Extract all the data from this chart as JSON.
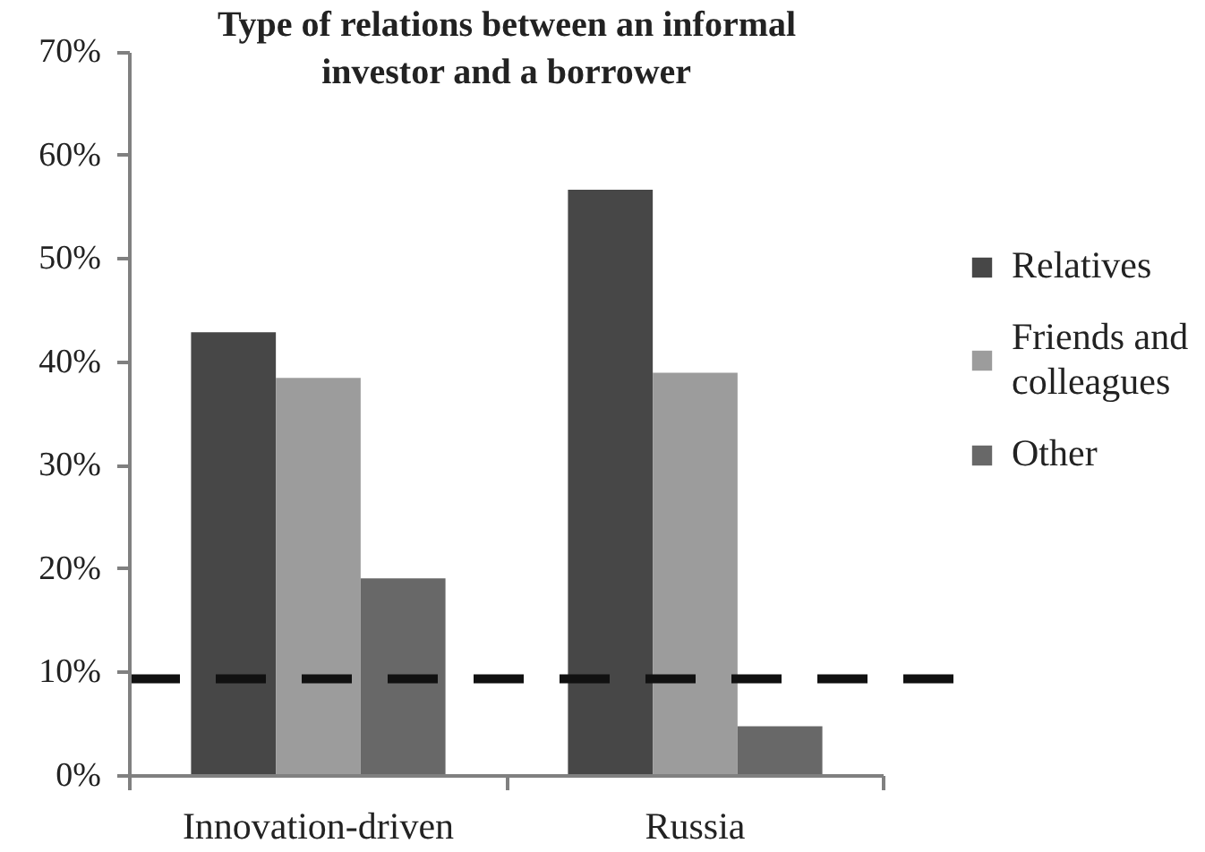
{
  "chart_data": {
    "type": "bar",
    "title": "Type of relations between an informal investor and a borrower",
    "categories": [
      "Innovation-driven",
      "Russia"
    ],
    "series": [
      {
        "name": "Relatives",
        "color": "#474747",
        "values": [
          42.9,
          56.7
        ]
      },
      {
        "name": "Friends and colleagues",
        "color": "#9c9c9c",
        "values": [
          38.5,
          39.0
        ]
      },
      {
        "name": "Other",
        "color": "#686868",
        "values": [
          19.1,
          4.8
        ]
      }
    ],
    "ylim": [
      0,
      70
    ],
    "yticks": [
      {
        "value": 0,
        "label": "0%"
      },
      {
        "value": 10,
        "label": "10%"
      },
      {
        "value": 20,
        "label": "20%"
      },
      {
        "value": 30,
        "label": "30%"
      },
      {
        "value": 40,
        "label": "40%"
      },
      {
        "value": 50,
        "label": "50%"
      },
      {
        "value": 60,
        "label": "60%"
      },
      {
        "value": 70,
        "label": "70%"
      }
    ],
    "legend": "right",
    "ref_lines": [
      {
        "axis": "y",
        "value": 9.4,
        "color": "#111111",
        "line_style": "dashed"
      }
    ]
  }
}
